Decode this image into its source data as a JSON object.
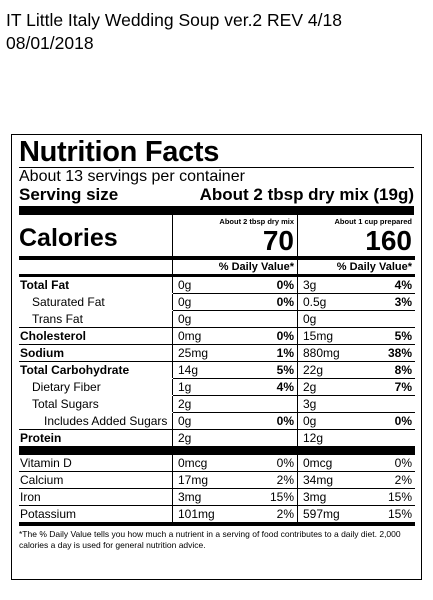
{
  "header": {
    "line1": "IT Little Italy Wedding Soup ver.2 REV 4/18",
    "line2": "08/01/2018"
  },
  "panel": {
    "title": "Nutrition Facts",
    "servings_per_container": "About 13 servings per container",
    "serving_size_label": "Serving size",
    "serving_size_value": "About 2 tbsp dry mix (19g)",
    "col1_header": "About 2 tbsp dry mix",
    "col2_header": "About 1 cup prepared",
    "calories_label": "Calories",
    "calories_col1": "70",
    "calories_col2": "160",
    "dv_header": "% Daily Value*",
    "rows": [
      {
        "label": "Total Fat",
        "c1": "0g",
        "c1dv": "0%",
        "c2": "3g",
        "c2dv": "4%"
      },
      {
        "label": "Saturated Fat",
        "c1": "0g",
        "c1dv": "0%",
        "c2": "0.5g",
        "c2dv": "3%"
      },
      {
        "label": "Trans Fat",
        "c1": "0g",
        "c1dv": "",
        "c2": "0g",
        "c2dv": ""
      },
      {
        "label": "Cholesterol",
        "c1": "0mg",
        "c1dv": "0%",
        "c2": "15mg",
        "c2dv": "5%"
      },
      {
        "label": "Sodium",
        "c1": "25mg",
        "c1dv": "1%",
        "c2": "880mg",
        "c2dv": "38%"
      },
      {
        "label": "Total Carbohydrate",
        "c1": "14g",
        "c1dv": "5%",
        "c2": "22g",
        "c2dv": "8%"
      },
      {
        "label": "Dietary Fiber",
        "c1": "1g",
        "c1dv": "4%",
        "c2": "2g",
        "c2dv": "7%"
      },
      {
        "label": "Total Sugars",
        "c1": "2g",
        "c1dv": "",
        "c2": "3g",
        "c2dv": ""
      },
      {
        "label": "Includes Added Sugars",
        "c1": "0g",
        "c1dv": "0%",
        "c2": "0g",
        "c2dv": "0%"
      },
      {
        "label": "Protein",
        "c1": "2g",
        "c1dv": "",
        "c2": "12g",
        "c2dv": ""
      },
      {
        "label": "Vitamin D",
        "c1": "0mcg",
        "c1dv": "0%",
        "c2": "0mcg",
        "c2dv": "0%"
      },
      {
        "label": "Calcium",
        "c1": "17mg",
        "c1dv": "2%",
        "c2": "34mg",
        "c2dv": "2%"
      },
      {
        "label": "Iron",
        "c1": "3mg",
        "c1dv": "15%",
        "c2": "3mg",
        "c2dv": "15%"
      },
      {
        "label": "Potassium",
        "c1": "101mg",
        "c1dv": "2%",
        "c2": "597mg",
        "c2dv": "15%"
      }
    ],
    "footnote": "*The % Daily Value tells you how much a nutrient in a serving of food contributes to a daily diet. 2,000 calories a day is used for general nutrition advice."
  }
}
